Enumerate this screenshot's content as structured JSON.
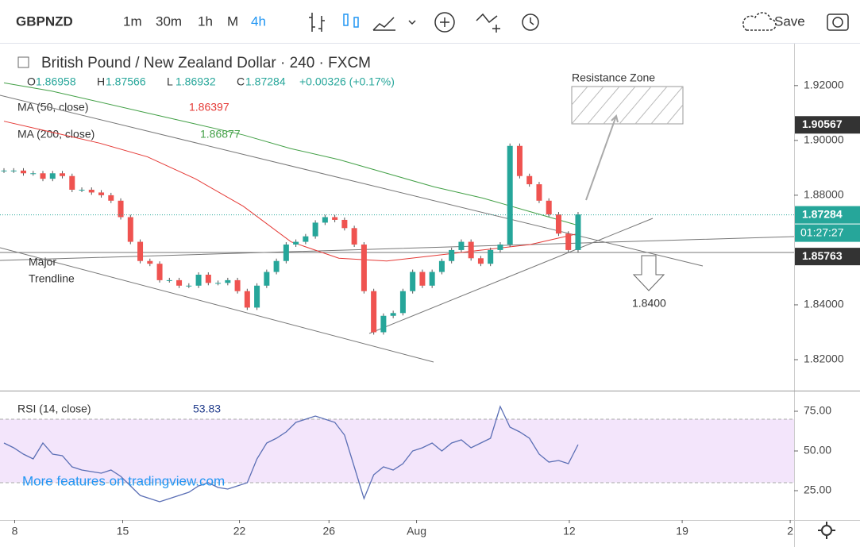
{
  "toolbar": {
    "symbol": "GBPNZD",
    "intervals": [
      "1m",
      "30m",
      "1h",
      "M",
      "4h"
    ],
    "save": "Save"
  },
  "chart_data": {
    "type": "candle",
    "title": "British Pound / New Zealand Dollar · 240 · FXCM",
    "ohlc": {
      "o": "O",
      "h": "H",
      "l": "L",
      "c": "C",
      "open": "1.86958",
      "high": "1.87566",
      "low": "1.86932",
      "close": "1.87284",
      "change": "+0.00326 (+0.17%)"
    },
    "series": [
      {
        "name": "GBPNZD",
        "values": [
          1.889,
          1.889,
          1.888,
          1.888,
          1.886,
          1.888,
          1.887,
          1.882,
          1.882,
          1.881,
          1.88,
          1.878,
          1.872,
          1.863,
          1.856,
          1.855,
          1.849,
          1.849,
          1.847,
          1.847,
          1.851,
          1.848,
          1.848,
          1.849,
          1.845,
          1.839,
          1.847,
          1.852,
          1.856,
          1.862,
          1.863,
          1.865,
          1.87,
          1.872,
          1.871,
          1.868,
          1.862,
          1.845,
          1.83,
          1.836,
          1.837,
          1.845,
          1.852,
          1.847,
          1.852,
          1.856,
          1.86,
          1.863,
          1.857,
          1.855,
          1.86,
          1.862,
          1.898,
          1.887,
          1.884,
          1.878,
          1.873,
          1.866,
          1.86,
          1.873
        ]
      },
      {
        "name": "MA (50, close)",
        "color": "#e53935",
        "last": "1.86397",
        "values": [
          1.907,
          1.903,
          1.899,
          1.894,
          1.886,
          1.876,
          1.863,
          1.857,
          1.856,
          1.858,
          1.86,
          1.862,
          1.866
        ]
      },
      {
        "name": "MA (200, close)",
        "color": "#43a047",
        "last": "1.86877",
        "values": [
          1.921,
          1.918,
          1.914,
          1.91,
          1.906,
          1.902,
          1.897,
          1.893,
          1.888,
          1.883,
          1.879,
          1.874,
          1.869
        ]
      }
    ],
    "xlim": [
      0,
      81.2
    ],
    "xticks": [
      {
        "value": 1.1,
        "label": "8"
      },
      {
        "value": 12.2,
        "label": "15"
      },
      {
        "value": 24.2,
        "label": "22"
      },
      {
        "value": 33.4,
        "label": "26"
      },
      {
        "value": 42.4,
        "label": "Aug"
      },
      {
        "value": 58.1,
        "label": "12"
      },
      {
        "value": 69.7,
        "label": "19"
      },
      {
        "value": 80.8,
        "label": "2"
      }
    ],
    "ylim": [
      1.8087,
      1.9353
    ],
    "yticks": [
      {
        "value": 1.92,
        "label": "1.92000"
      },
      {
        "value": 1.9,
        "label": "1.90000"
      },
      {
        "value": 1.88,
        "label": "1.88000"
      },
      {
        "value": 1.84,
        "label": "1.84000"
      },
      {
        "value": 1.82,
        "label": "1.82000"
      }
    ],
    "price_labels": [
      {
        "value": 1.90567,
        "label": "1.90567"
      },
      {
        "value": 1.87284,
        "label": "1.87284"
      },
      {
        "value": 1.85763,
        "label": "1.85763"
      }
    ],
    "countdown": "01:27:27",
    "annotations": {
      "resistance": "Resistance Zone",
      "trendline": "Major",
      "trendline2": "Trendline",
      "target": "1.8400"
    },
    "rsi": {
      "name": "RSI (14, close)",
      "last": "53.83",
      "color": "#5b6fb5",
      "ylim": [
        6.5,
        87.5
      ],
      "yticks": [
        {
          "value": 75,
          "label": "75.00"
        },
        {
          "value": 50,
          "label": "50.00"
        },
        {
          "value": 25,
          "label": "25.00"
        }
      ],
      "band": [
        30,
        70
      ],
      "values": [
        55,
        52,
        48,
        45,
        55,
        48,
        47,
        40,
        38,
        37,
        36,
        38,
        34,
        28,
        22,
        20,
        18,
        20,
        22,
        24,
        28,
        30,
        27,
        26,
        28,
        30,
        45,
        55,
        58,
        62,
        68,
        70,
        72,
        70,
        68,
        60,
        40,
        20,
        35,
        40,
        38,
        42,
        50,
        52,
        55,
        50,
        55,
        57,
        52,
        55,
        58,
        78,
        65,
        62,
        58,
        48,
        43,
        44,
        42,
        54
      ]
    },
    "watermark": "More features on tradingview.com"
  }
}
